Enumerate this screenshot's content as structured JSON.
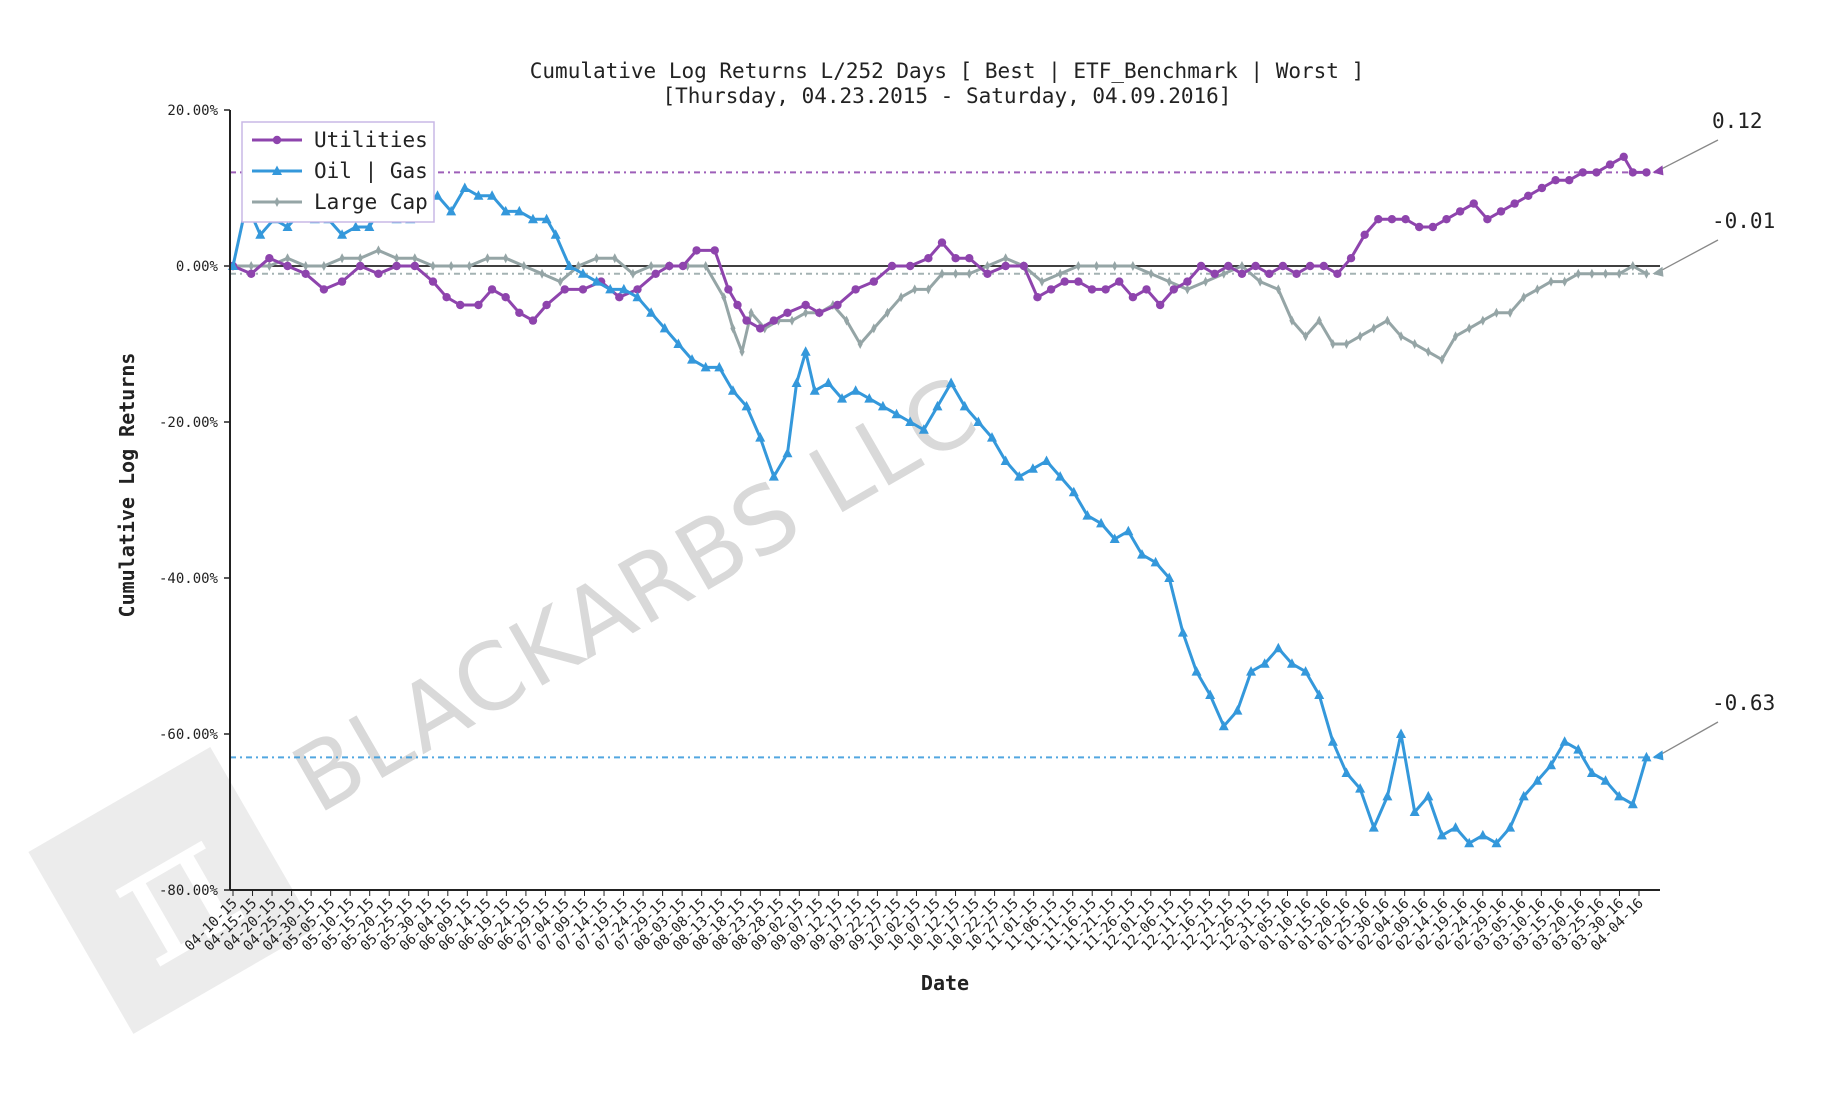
{
  "chart_data": {
    "type": "line",
    "title": "Cumulative Log Returns L/252 Days [ Best | ETF_Benchmark | Worst ]",
    "subtitle": "[Thursday, 04.23.2015 - Saturday, 04.09.2016]",
    "xlabel": "Date",
    "ylabel": "Cumulative Log Returns",
    "ylim": [
      -0.8,
      0.2
    ],
    "y_ticks": [
      0.2,
      0.0,
      -0.2,
      -0.4,
      -0.6,
      -0.8
    ],
    "y_tick_labels": [
      "20.00%",
      "0.00%",
      "-20.00%",
      "-40.00%",
      "-60.00%",
      "-80.00%"
    ],
    "x_tick_labels": [
      "04-10-15",
      "04-15-15",
      "04-20-15",
      "04-25-15",
      "04-30-15",
      "05-05-15",
      "05-10-15",
      "05-15-15",
      "05-20-15",
      "05-25-15",
      "05-30-15",
      "06-04-15",
      "06-09-15",
      "06-14-15",
      "06-19-15",
      "06-24-15",
      "06-29-15",
      "07-04-15",
      "07-09-15",
      "07-14-15",
      "07-19-15",
      "07-24-15",
      "07-29-15",
      "08-03-15",
      "08-08-15",
      "08-13-15",
      "08-18-15",
      "08-23-15",
      "08-28-15",
      "09-02-15",
      "09-07-15",
      "09-12-15",
      "09-17-15",
      "09-22-15",
      "09-27-15",
      "10-02-15",
      "10-07-15",
      "10-12-15",
      "10-17-15",
      "10-22-15",
      "10-27-15",
      "11-01-15",
      "11-06-15",
      "11-11-15",
      "11-16-15",
      "11-21-15",
      "11-26-15",
      "12-01-15",
      "12-06-15",
      "12-11-15",
      "12-16-15",
      "12-21-15",
      "12-26-15",
      "12-31-15",
      "01-05-16",
      "01-10-16",
      "01-15-16",
      "01-20-16",
      "01-25-16",
      "01-30-16",
      "02-04-16",
      "02-09-16",
      "02-14-16",
      "02-19-16",
      "02-24-16",
      "02-29-16",
      "03-05-16",
      "03-10-16",
      "03-15-16",
      "03-20-16",
      "03-25-16",
      "03-30-16",
      "04-04-16"
    ],
    "grid": false,
    "legend_position": "top-left",
    "zero_line": 0.0,
    "series": [
      {
        "name": "Utilities",
        "color": "#8e44ad",
        "marker": "circle",
        "final_value": 0.12,
        "final_label": "0.12",
        "points": [
          [
            0,
            0.0
          ],
          [
            4,
            -0.01
          ],
          [
            8,
            0.01
          ],
          [
            12,
            0.0
          ],
          [
            16,
            -0.01
          ],
          [
            20,
            -0.03
          ],
          [
            24,
            -0.02
          ],
          [
            28,
            0.0
          ],
          [
            32,
            -0.01
          ],
          [
            36,
            0.0
          ],
          [
            40,
            0.0
          ],
          [
            44,
            -0.02
          ],
          [
            47,
            -0.04
          ],
          [
            50,
            -0.05
          ],
          [
            54,
            -0.05
          ],
          [
            57,
            -0.03
          ],
          [
            60,
            -0.04
          ],
          [
            63,
            -0.06
          ],
          [
            66,
            -0.07
          ],
          [
            69,
            -0.05
          ],
          [
            73,
            -0.03
          ],
          [
            77,
            -0.03
          ],
          [
            81,
            -0.02
          ],
          [
            85,
            -0.04
          ],
          [
            89,
            -0.03
          ],
          [
            93,
            -0.01
          ],
          [
            96,
            0.0
          ],
          [
            99,
            0.0
          ],
          [
            102,
            0.02
          ],
          [
            106,
            0.02
          ],
          [
            109,
            -0.03
          ],
          [
            111,
            -0.05
          ],
          [
            113,
            -0.07
          ],
          [
            116,
            -0.08
          ],
          [
            119,
            -0.07
          ],
          [
            122,
            -0.06
          ],
          [
            126,
            -0.05
          ],
          [
            129,
            -0.06
          ],
          [
            133,
            -0.05
          ],
          [
            137,
            -0.03
          ],
          [
            141,
            -0.02
          ],
          [
            145,
            0.0
          ],
          [
            149,
            0.0
          ],
          [
            153,
            0.01
          ],
          [
            156,
            0.03
          ],
          [
            159,
            0.01
          ],
          [
            162,
            0.01
          ],
          [
            166,
            -0.01
          ],
          [
            170,
            0.0
          ],
          [
            174,
            0.0
          ],
          [
            177,
            -0.04
          ],
          [
            180,
            -0.03
          ],
          [
            183,
            -0.02
          ],
          [
            186,
            -0.02
          ],
          [
            189,
            -0.03
          ],
          [
            192,
            -0.03
          ],
          [
            195,
            -0.02
          ],
          [
            198,
            -0.04
          ],
          [
            201,
            -0.03
          ],
          [
            204,
            -0.05
          ],
          [
            207,
            -0.03
          ],
          [
            210,
            -0.02
          ],
          [
            213,
            0.0
          ],
          [
            216,
            -0.01
          ],
          [
            219,
            0.0
          ],
          [
            222,
            -0.01
          ],
          [
            225,
            0.0
          ],
          [
            228,
            -0.01
          ],
          [
            231,
            0.0
          ],
          [
            234,
            -0.01
          ],
          [
            237,
            0.0
          ],
          [
            240,
            0.0
          ],
          [
            243,
            -0.01
          ],
          [
            246,
            0.01
          ],
          [
            249,
            0.04
          ],
          [
            252,
            0.06
          ],
          [
            255,
            0.06
          ],
          [
            258,
            0.06
          ],
          [
            261,
            0.05
          ],
          [
            264,
            0.05
          ],
          [
            267,
            0.06
          ],
          [
            270,
            0.07
          ],
          [
            273,
            0.08
          ],
          [
            276,
            0.06
          ],
          [
            279,
            0.07
          ],
          [
            282,
            0.08
          ],
          [
            285,
            0.09
          ],
          [
            288,
            0.1
          ],
          [
            291,
            0.11
          ],
          [
            294,
            0.11
          ],
          [
            297,
            0.12
          ],
          [
            300,
            0.12
          ],
          [
            303,
            0.13
          ],
          [
            306,
            0.14
          ],
          [
            308,
            0.12
          ],
          [
            311,
            0.12
          ]
        ]
      },
      {
        "name": "Oil | Gas",
        "color": "#3498db",
        "marker": "triangle",
        "final_value": -0.63,
        "final_label": "-0.63",
        "points": [
          [
            0,
            0.0
          ],
          [
            3,
            0.08
          ],
          [
            6,
            0.04
          ],
          [
            9,
            0.06
          ],
          [
            12,
            0.05
          ],
          [
            15,
            0.07
          ],
          [
            18,
            0.06
          ],
          [
            21,
            0.06
          ],
          [
            24,
            0.04
          ],
          [
            27,
            0.05
          ],
          [
            30,
            0.05
          ],
          [
            33,
            0.08
          ],
          [
            36,
            0.06
          ],
          [
            39,
            0.06
          ],
          [
            42,
            0.08
          ],
          [
            45,
            0.09
          ],
          [
            48,
            0.07
          ],
          [
            51,
            0.1
          ],
          [
            54,
            0.09
          ],
          [
            57,
            0.09
          ],
          [
            60,
            0.07
          ],
          [
            63,
            0.07
          ],
          [
            66,
            0.06
          ],
          [
            69,
            0.06
          ],
          [
            71,
            0.04
          ],
          [
            74,
            0.0
          ],
          [
            77,
            -0.01
          ],
          [
            80,
            -0.02
          ],
          [
            83,
            -0.03
          ],
          [
            86,
            -0.03
          ],
          [
            89,
            -0.04
          ],
          [
            92,
            -0.06
          ],
          [
            95,
            -0.08
          ],
          [
            98,
            -0.1
          ],
          [
            101,
            -0.12
          ],
          [
            104,
            -0.13
          ],
          [
            107,
            -0.13
          ],
          [
            110,
            -0.16
          ],
          [
            113,
            -0.18
          ],
          [
            116,
            -0.22
          ],
          [
            119,
            -0.27
          ],
          [
            122,
            -0.24
          ],
          [
            124,
            -0.15
          ],
          [
            126,
            -0.11
          ],
          [
            128,
            -0.16
          ],
          [
            131,
            -0.15
          ],
          [
            134,
            -0.17
          ],
          [
            137,
            -0.16
          ],
          [
            140,
            -0.17
          ],
          [
            143,
            -0.18
          ],
          [
            146,
            -0.19
          ],
          [
            149,
            -0.2
          ],
          [
            152,
            -0.21
          ],
          [
            155,
            -0.18
          ],
          [
            158,
            -0.15
          ],
          [
            161,
            -0.18
          ],
          [
            164,
            -0.2
          ],
          [
            167,
            -0.22
          ],
          [
            170,
            -0.25
          ],
          [
            173,
            -0.27
          ],
          [
            176,
            -0.26
          ],
          [
            179,
            -0.25
          ],
          [
            182,
            -0.27
          ],
          [
            185,
            -0.29
          ],
          [
            188,
            -0.32
          ],
          [
            191,
            -0.33
          ],
          [
            194,
            -0.35
          ],
          [
            197,
            -0.34
          ],
          [
            200,
            -0.37
          ],
          [
            203,
            -0.38
          ],
          [
            206,
            -0.4
          ],
          [
            209,
            -0.47
          ],
          [
            212,
            -0.52
          ],
          [
            215,
            -0.55
          ],
          [
            218,
            -0.59
          ],
          [
            221,
            -0.57
          ],
          [
            224,
            -0.52
          ],
          [
            227,
            -0.51
          ],
          [
            230,
            -0.49
          ],
          [
            233,
            -0.51
          ],
          [
            236,
            -0.52
          ],
          [
            239,
            -0.55
          ],
          [
            242,
            -0.61
          ],
          [
            245,
            -0.65
          ],
          [
            248,
            -0.67
          ],
          [
            251,
            -0.72
          ],
          [
            254,
            -0.68
          ],
          [
            257,
            -0.6
          ],
          [
            260,
            -0.7
          ],
          [
            263,
            -0.68
          ],
          [
            266,
            -0.73
          ],
          [
            269,
            -0.72
          ],
          [
            272,
            -0.74
          ],
          [
            275,
            -0.73
          ],
          [
            278,
            -0.74
          ],
          [
            281,
            -0.72
          ],
          [
            284,
            -0.68
          ],
          [
            287,
            -0.66
          ],
          [
            290,
            -0.64
          ],
          [
            293,
            -0.61
          ],
          [
            296,
            -0.62
          ],
          [
            299,
            -0.65
          ],
          [
            302,
            -0.66
          ],
          [
            305,
            -0.68
          ],
          [
            308,
            -0.69
          ],
          [
            311,
            -0.63
          ]
        ]
      },
      {
        "name": "Large Cap",
        "color": "#95a5a6",
        "marker": "diamond",
        "final_value": -0.01,
        "final_label": "-0.01",
        "points": [
          [
            0,
            0.0
          ],
          [
            4,
            0.0
          ],
          [
            8,
            0.0
          ],
          [
            12,
            0.01
          ],
          [
            16,
            0.0
          ],
          [
            20,
            0.0
          ],
          [
            24,
            0.01
          ],
          [
            28,
            0.01
          ],
          [
            32,
            0.02
          ],
          [
            36,
            0.01
          ],
          [
            40,
            0.01
          ],
          [
            44,
            0.0
          ],
          [
            48,
            0.0
          ],
          [
            52,
            0.0
          ],
          [
            56,
            0.01
          ],
          [
            60,
            0.01
          ],
          [
            64,
            0.0
          ],
          [
            68,
            -0.01
          ],
          [
            72,
            -0.02
          ],
          [
            76,
            0.0
          ],
          [
            80,
            0.01
          ],
          [
            84,
            0.01
          ],
          [
            88,
            -0.01
          ],
          [
            92,
            0.0
          ],
          [
            96,
            0.0
          ],
          [
            100,
            0.0
          ],
          [
            104,
            0.0
          ],
          [
            108,
            -0.04
          ],
          [
            110,
            -0.08
          ],
          [
            112,
            -0.11
          ],
          [
            114,
            -0.06
          ],
          [
            117,
            -0.08
          ],
          [
            120,
            -0.07
          ],
          [
            123,
            -0.07
          ],
          [
            126,
            -0.06
          ],
          [
            129,
            -0.06
          ],
          [
            132,
            -0.05
          ],
          [
            135,
            -0.07
          ],
          [
            138,
            -0.1
          ],
          [
            141,
            -0.08
          ],
          [
            144,
            -0.06
          ],
          [
            147,
            -0.04
          ],
          [
            150,
            -0.03
          ],
          [
            153,
            -0.03
          ],
          [
            156,
            -0.01
          ],
          [
            159,
            -0.01
          ],
          [
            162,
            -0.01
          ],
          [
            166,
            0.0
          ],
          [
            170,
            0.01
          ],
          [
            174,
            0.0
          ],
          [
            178,
            -0.02
          ],
          [
            182,
            -0.01
          ],
          [
            186,
            0.0
          ],
          [
            190,
            0.0
          ],
          [
            194,
            0.0
          ],
          [
            198,
            0.0
          ],
          [
            202,
            -0.01
          ],
          [
            206,
            -0.02
          ],
          [
            210,
            -0.03
          ],
          [
            214,
            -0.02
          ],
          [
            218,
            -0.01
          ],
          [
            222,
            0.0
          ],
          [
            226,
            -0.02
          ],
          [
            230,
            -0.03
          ],
          [
            233,
            -0.07
          ],
          [
            236,
            -0.09
          ],
          [
            239,
            -0.07
          ],
          [
            242,
            -0.1
          ],
          [
            245,
            -0.1
          ],
          [
            248,
            -0.09
          ],
          [
            251,
            -0.08
          ],
          [
            254,
            -0.07
          ],
          [
            257,
            -0.09
          ],
          [
            260,
            -0.1
          ],
          [
            263,
            -0.11
          ],
          [
            266,
            -0.12
          ],
          [
            269,
            -0.09
          ],
          [
            272,
            -0.08
          ],
          [
            275,
            -0.07
          ],
          [
            278,
            -0.06
          ],
          [
            281,
            -0.06
          ],
          [
            284,
            -0.04
          ],
          [
            287,
            -0.03
          ],
          [
            290,
            -0.02
          ],
          [
            293,
            -0.02
          ],
          [
            296,
            -0.01
          ],
          [
            299,
            -0.01
          ],
          [
            302,
            -0.01
          ],
          [
            305,
            -0.01
          ],
          [
            308,
            0.0
          ],
          [
            311,
            -0.01
          ]
        ]
      }
    ]
  },
  "watermark": {
    "text": "BLACKARBS LLC",
    "logo_icon": "pi-logo-icon"
  }
}
